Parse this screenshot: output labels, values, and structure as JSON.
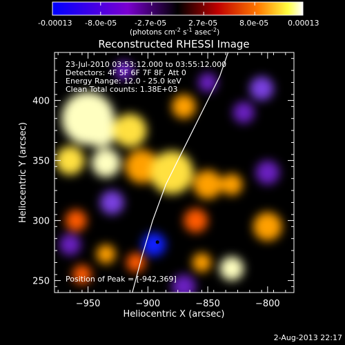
{
  "colorbar": {
    "tick_labels": [
      "-0.00013",
      "-8.0e-05",
      "-2.7e-05",
      "2.7e-05",
      "8.0e-05",
      "0.00013"
    ],
    "tick_values": [
      -0.00013,
      -8e-05,
      -2.7e-05,
      2.7e-05,
      8e-05,
      0.00013
    ],
    "range": [
      -0.00013,
      0.00013
    ],
    "unit_prefix": "(photons cm",
    "unit_sup1": "-2",
    "unit_mid": " s",
    "unit_sup2": "-1",
    "unit_mid2": " asec",
    "unit_sup3": "-2",
    "unit_suffix": ")",
    "colors": [
      "#0000ff",
      "#7a00d0",
      "#000000",
      "#c00000",
      "#ff7a00",
      "#ffff40",
      "#ffffff"
    ]
  },
  "info": {
    "line1": "23-Jul-2010 03:53:12.000 to 03:55:12.000",
    "line2": "Detectors: 4F 5F 6F 7F 8F, Att 0",
    "line3": "Energy Range: 12.0 - 25.0 keV",
    "line4": "Clean     Total counts: 1.38E+03"
  },
  "peak_label": "Position of Peak = [-942,369]",
  "timestamp": "2-Aug-2013 22:17",
  "chart_data": {
    "type": "heatmap",
    "title": "Reconstructed RHESSI Image",
    "xlabel": "Heliocentric X (arcsec)",
    "ylabel": "Heliocentric Y (arcsec)",
    "xlim": [
      -978,
      -778
    ],
    "ylim": [
      240,
      440
    ],
    "x_ticks": [
      -950,
      -900,
      -850,
      -800
    ],
    "y_ticks": [
      250,
      300,
      350,
      400
    ],
    "x_tick_labels": [
      "−950",
      "−900",
      "−850",
      "−800"
    ],
    "y_tick_labels": [
      "250",
      "300",
      "350",
      "400"
    ],
    "peak": [
      -942,
      369
    ],
    "marker": [
      -892,
      282
    ],
    "limb_curve": [
      [
        -913,
        240
      ],
      [
        -905,
        270
      ],
      [
        -896,
        300
      ],
      [
        -885,
        330
      ],
      [
        -870,
        360
      ],
      [
        -855,
        390
      ],
      [
        -840,
        420
      ],
      [
        -833,
        440
      ]
    ],
    "blobs": [
      {
        "x": -950,
        "y": 385,
        "r": 22,
        "v": 1.0
      },
      {
        "x": -940,
        "y": 375,
        "r": 14,
        "v": 0.9
      },
      {
        "x": -965,
        "y": 350,
        "r": 12,
        "v": 0.8
      },
      {
        "x": -935,
        "y": 348,
        "r": 12,
        "v": 0.85
      },
      {
        "x": -915,
        "y": 375,
        "r": 14,
        "v": 0.8
      },
      {
        "x": -905,
        "y": 345,
        "r": 14,
        "v": 0.65
      },
      {
        "x": -880,
        "y": 340,
        "r": 18,
        "v": 0.7
      },
      {
        "x": -850,
        "y": 330,
        "r": 12,
        "v": 0.5
      },
      {
        "x": -870,
        "y": 395,
        "r": 10,
        "v": 0.5
      },
      {
        "x": -830,
        "y": 330,
        "r": 9,
        "v": 0.6
      },
      {
        "x": -800,
        "y": 295,
        "r": 12,
        "v": 0.65
      },
      {
        "x": -860,
        "y": 300,
        "r": 10,
        "v": 0.45
      },
      {
        "x": -960,
        "y": 300,
        "r": 9,
        "v": 0.4
      },
      {
        "x": -935,
        "y": 272,
        "r": 8,
        "v": 0.55
      },
      {
        "x": -910,
        "y": 265,
        "r": 8,
        "v": 0.45
      },
      {
        "x": -830,
        "y": 260,
        "r": 10,
        "v": 0.95
      },
      {
        "x": -855,
        "y": 265,
        "r": 8,
        "v": 0.6
      },
      {
        "x": -955,
        "y": 255,
        "r": 8,
        "v": 0.35
      },
      {
        "x": -805,
        "y": 410,
        "r": 10,
        "v": -0.5
      },
      {
        "x": -820,
        "y": 390,
        "r": 9,
        "v": -0.35
      },
      {
        "x": -895,
        "y": 280,
        "r": 10,
        "v": -0.85
      },
      {
        "x": -930,
        "y": 315,
        "r": 10,
        "v": -0.4
      },
      {
        "x": -800,
        "y": 340,
        "r": 10,
        "v": -0.3
      },
      {
        "x": -870,
        "y": 245,
        "r": 10,
        "v": -0.35
      },
      {
        "x": -965,
        "y": 280,
        "r": 9,
        "v": -0.3
      },
      {
        "x": -850,
        "y": 415,
        "r": 8,
        "v": -0.35
      },
      {
        "x": -920,
        "y": 425,
        "r": 8,
        "v": -0.3
      }
    ]
  }
}
